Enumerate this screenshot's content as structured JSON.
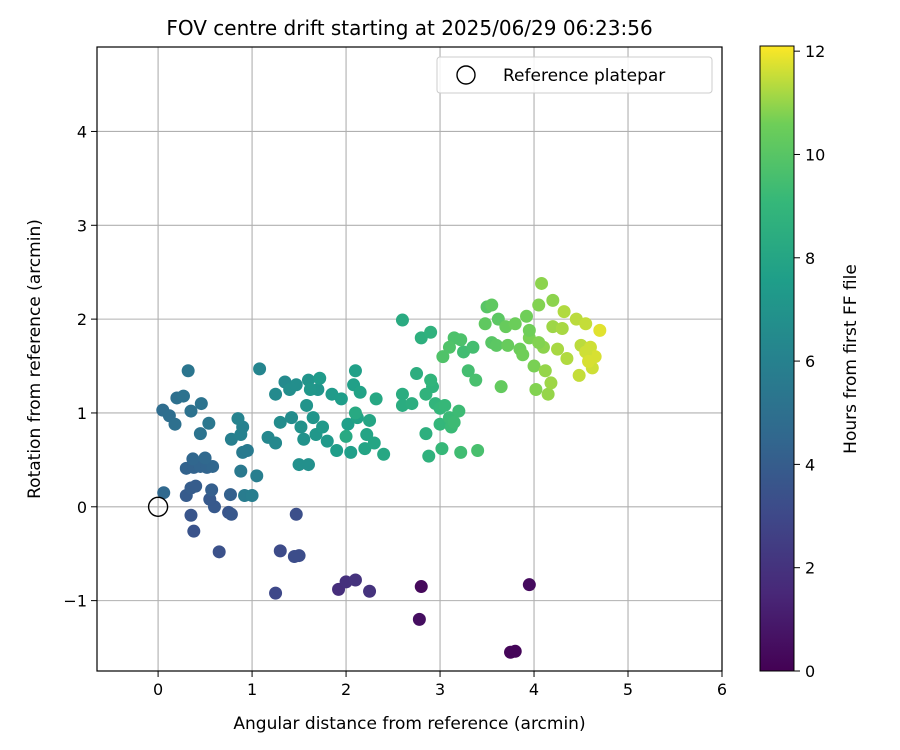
{
  "chart_data": {
    "type": "scatter",
    "title": "FOV centre drift starting at 2025/06/29 06:23:56",
    "xlabel": "Angular distance from reference (arcmin)",
    "ylabel": "Rotation from reference (arcmin)",
    "xlim": [
      -0.65,
      6.0
    ],
    "ylim": [
      -1.75,
      4.9
    ],
    "xticks": [
      0,
      1,
      2,
      3,
      4,
      5,
      6
    ],
    "xtick_labels": [
      "0",
      "1",
      "2",
      "3",
      "4",
      "5",
      "6"
    ],
    "yticks": [
      -1,
      0,
      1,
      2,
      3,
      4
    ],
    "ytick_labels": [
      "−1",
      "0",
      "1",
      "2",
      "3",
      "4"
    ],
    "grid": true,
    "legend": {
      "position": "upper-right",
      "entries": [
        "Reference platepar"
      ]
    },
    "reference_point": {
      "x": 0,
      "y": 0,
      "label": "Reference platepar"
    },
    "colorbar": {
      "label": "Hours from first FF file",
      "colormap": "viridis",
      "range": [
        0,
        12.1
      ],
      "ticks": [
        0,
        2,
        4,
        6,
        8,
        10,
        12
      ],
      "tick_labels": [
        "0",
        "2",
        "4",
        "6",
        "8",
        "10",
        "12"
      ]
    },
    "points": [
      [
        2.8,
        -0.85,
        0.3
      ],
      [
        3.95,
        -0.83,
        0.4
      ],
      [
        2.78,
        -1.2,
        0.5
      ],
      [
        3.75,
        -1.55,
        0.2
      ],
      [
        3.8,
        -1.54,
        0.2
      ],
      [
        1.92,
        -0.88,
        1.8
      ],
      [
        2.0,
        -0.8,
        1.9
      ],
      [
        2.1,
        -0.78,
        2.0
      ],
      [
        2.25,
        -0.9,
        2.0
      ],
      [
        1.25,
        -0.92,
        3.0
      ],
      [
        1.3,
        -0.47,
        3.1
      ],
      [
        1.45,
        -0.53,
        3.2
      ],
      [
        1.5,
        -0.52,
        3.2
      ],
      [
        1.47,
        -0.08,
        3.3
      ],
      [
        0.65,
        -0.48,
        3.4
      ],
      [
        0.38,
        -0.26,
        3.5
      ],
      [
        0.35,
        -0.09,
        3.6
      ],
      [
        0.75,
        -0.06,
        3.6
      ],
      [
        0.78,
        -0.08,
        3.7
      ],
      [
        0.6,
        0.0,
        3.8
      ],
      [
        0.55,
        0.08,
        3.8
      ],
      [
        0.3,
        0.12,
        3.9
      ],
      [
        0.35,
        0.2,
        4.0
      ],
      [
        0.4,
        0.22,
        4.0
      ],
      [
        0.57,
        0.18,
        4.1
      ],
      [
        0.77,
        0.13,
        4.2
      ],
      [
        0.3,
        0.41,
        4.3
      ],
      [
        0.38,
        0.42,
        4.3
      ],
      [
        0.45,
        0.43,
        4.4
      ],
      [
        0.52,
        0.42,
        4.4
      ],
      [
        0.58,
        0.43,
        4.5
      ],
      [
        0.37,
        0.51,
        4.5
      ],
      [
        0.5,
        0.52,
        4.6
      ],
      [
        0.06,
        0.15,
        4.6
      ],
      [
        0.05,
        1.03,
        4.8
      ],
      [
        0.12,
        0.97,
        4.9
      ],
      [
        0.18,
        0.88,
        5.0
      ],
      [
        0.2,
        1.16,
        5.0
      ],
      [
        0.27,
        1.18,
        5.1
      ],
      [
        0.35,
        1.02,
        5.1
      ],
      [
        0.46,
        1.1,
        5.2
      ],
      [
        0.45,
        0.78,
        5.2
      ],
      [
        0.32,
        1.45,
        5.3
      ],
      [
        0.54,
        0.89,
        5.4
      ],
      [
        0.88,
        0.38,
        5.5
      ],
      [
        0.9,
        0.58,
        5.6
      ],
      [
        0.95,
        0.6,
        5.6
      ],
      [
        0.92,
        0.12,
        5.7
      ],
      [
        1.0,
        0.12,
        5.8
      ],
      [
        1.05,
        0.33,
        5.8
      ],
      [
        0.78,
        0.72,
        5.9
      ],
      [
        0.88,
        0.77,
        6.0
      ],
      [
        0.9,
        0.85,
        6.0
      ],
      [
        0.85,
        0.94,
        6.1
      ],
      [
        1.08,
        1.47,
        6.2
      ],
      [
        1.17,
        0.74,
        6.3
      ],
      [
        1.25,
        0.68,
        6.4
      ],
      [
        1.25,
        1.2,
        6.5
      ],
      [
        1.35,
        1.33,
        6.5
      ],
      [
        1.3,
        0.9,
        6.6
      ],
      [
        1.42,
        0.95,
        6.6
      ],
      [
        1.4,
        1.25,
        6.7
      ],
      [
        1.47,
        1.3,
        6.7
      ],
      [
        1.5,
        0.45,
        6.8
      ],
      [
        1.6,
        0.45,
        6.8
      ],
      [
        1.52,
        0.85,
        6.9
      ],
      [
        1.55,
        0.72,
        6.9
      ],
      [
        1.58,
        1.08,
        7.0
      ],
      [
        1.6,
        1.35,
        7.0
      ],
      [
        1.65,
        0.95,
        7.1
      ],
      [
        1.7,
        1.25,
        7.1
      ],
      [
        1.62,
        1.25,
        7.2
      ],
      [
        1.68,
        0.77,
        7.2
      ],
      [
        1.75,
        0.85,
        7.3
      ],
      [
        1.8,
        0.7,
        7.3
      ],
      [
        1.72,
        1.37,
        7.4
      ],
      [
        1.85,
        1.2,
        7.4
      ],
      [
        1.9,
        0.6,
        7.5
      ],
      [
        1.95,
        1.15,
        7.5
      ],
      [
        2.05,
        0.58,
        7.6
      ],
      [
        2.02,
        0.88,
        7.6
      ],
      [
        2.08,
        1.3,
        7.7
      ],
      [
        2.1,
        1.45,
        7.7
      ],
      [
        2.12,
        0.95,
        7.8
      ],
      [
        2.15,
        1.22,
        7.8
      ],
      [
        2.2,
        0.62,
        7.9
      ],
      [
        2.22,
        0.77,
        7.9
      ],
      [
        2.25,
        0.92,
        8.0
      ],
      [
        2.3,
        0.68,
        8.0
      ],
      [
        2.32,
        1.15,
        8.1
      ],
      [
        2.4,
        0.56,
        8.1
      ],
      [
        2.1,
        1.0,
        8.2
      ],
      [
        2.0,
        0.75,
        8.2
      ],
      [
        2.6,
        1.99,
        8.3
      ],
      [
        2.6,
        1.2,
        8.4
      ],
      [
        2.6,
        1.08,
        8.4
      ],
      [
        2.7,
        1.1,
        8.5
      ],
      [
        2.75,
        1.42,
        8.5
      ],
      [
        2.8,
        1.8,
        8.6
      ],
      [
        2.85,
        0.78,
        8.6
      ],
      [
        2.88,
        0.54,
        8.7
      ],
      [
        2.9,
        1.86,
        8.7
      ],
      [
        2.92,
        1.28,
        8.8
      ],
      [
        2.85,
        1.2,
        8.8
      ],
      [
        2.9,
        1.35,
        8.9
      ],
      [
        2.95,
        1.1,
        8.9
      ],
      [
        3.0,
        1.05,
        9.0
      ],
      [
        3.0,
        0.88,
        9.0
      ],
      [
        3.02,
        0.62,
        9.1
      ],
      [
        3.05,
        1.08,
        9.1
      ],
      [
        3.1,
        0.95,
        9.2
      ],
      [
        3.12,
        0.85,
        9.2
      ],
      [
        3.15,
        0.9,
        9.3
      ],
      [
        3.2,
        1.02,
        9.3
      ],
      [
        3.22,
        0.58,
        9.4
      ],
      [
        3.25,
        1.65,
        9.4
      ],
      [
        3.3,
        1.45,
        9.5
      ],
      [
        3.35,
        1.7,
        9.5
      ],
      [
        3.4,
        0.6,
        9.6
      ],
      [
        3.38,
        1.35,
        9.6
      ],
      [
        3.15,
        1.8,
        9.7
      ],
      [
        3.22,
        1.78,
        9.7
      ],
      [
        3.03,
        1.6,
        9.8
      ],
      [
        3.1,
        1.7,
        9.8
      ],
      [
        3.5,
        2.13,
        10.0
      ],
      [
        3.55,
        1.75,
        10.0
      ],
      [
        3.6,
        1.72,
        10.1
      ],
      [
        3.62,
        2.0,
        10.1
      ],
      [
        3.48,
        1.95,
        10.2
      ],
      [
        3.55,
        2.15,
        10.2
      ],
      [
        3.65,
        1.28,
        10.3
      ],
      [
        3.7,
        1.92,
        10.4
      ],
      [
        3.72,
        1.72,
        10.4
      ],
      [
        3.8,
        1.95,
        10.5
      ],
      [
        3.85,
        1.68,
        10.5
      ],
      [
        3.88,
        1.62,
        10.6
      ],
      [
        3.92,
        2.03,
        10.6
      ],
      [
        3.95,
        1.8,
        10.7
      ],
      [
        4.0,
        1.5,
        10.7
      ],
      [
        4.02,
        1.25,
        10.8
      ],
      [
        4.05,
        2.15,
        10.8
      ],
      [
        4.08,
        2.38,
        10.9
      ],
      [
        4.1,
        1.7,
        10.9
      ],
      [
        4.12,
        1.45,
        11.0
      ],
      [
        4.15,
        1.2,
        11.0
      ],
      [
        4.18,
        1.32,
        11.1
      ],
      [
        4.2,
        1.92,
        11.1
      ],
      [
        4.25,
        1.68,
        11.2
      ],
      [
        4.3,
        1.9,
        11.2
      ],
      [
        4.32,
        2.08,
        11.3
      ],
      [
        4.35,
        1.58,
        11.3
      ],
      [
        4.45,
        2.0,
        11.4
      ],
      [
        4.5,
        1.72,
        11.4
      ],
      [
        4.48,
        1.4,
        11.5
      ],
      [
        4.55,
        1.95,
        11.5
      ],
      [
        4.6,
        1.7,
        11.6
      ],
      [
        4.62,
        1.48,
        11.6
      ],
      [
        4.65,
        1.6,
        11.7
      ],
      [
        4.7,
        1.88,
        11.8
      ],
      [
        4.2,
        2.2,
        10.9
      ],
      [
        3.95,
        1.88,
        10.6
      ],
      [
        4.05,
        1.75,
        10.8
      ],
      [
        4.55,
        1.65,
        11.6
      ],
      [
        4.58,
        1.55,
        11.7
      ]
    ]
  }
}
